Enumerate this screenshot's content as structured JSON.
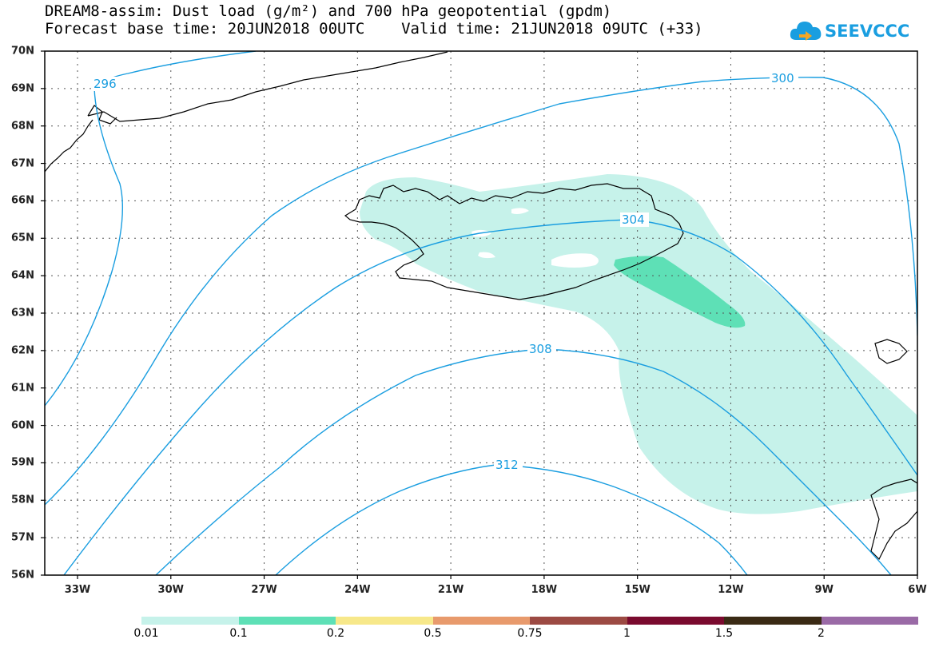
{
  "title": {
    "line1": "DREAM8-assim: Dust load (g/m²) and 700 hPa geopotential (gpdm)",
    "line2": "Forecast base time: 20JUN2018 00UTC    Valid time: 21JUN2018 09UTC (+33)"
  },
  "logo": {
    "text": "SEEVCCC",
    "icon": "cloud-icon",
    "color": "#1a9ee0"
  },
  "axes": {
    "lat_labels": [
      "70N",
      "69N",
      "68N",
      "67N",
      "66N",
      "65N",
      "64N",
      "63N",
      "62N",
      "61N",
      "60N",
      "59N",
      "58N",
      "57N",
      "56N"
    ],
    "lon_labels": [
      "33W",
      "30W",
      "27W",
      "24W",
      "21W",
      "18W",
      "15W",
      "12W",
      "9W",
      "6W"
    ]
  },
  "contours": {
    "color": "#1a9ee0",
    "labels": [
      "296",
      "300",
      "304",
      "308",
      "312"
    ]
  },
  "colorbar": {
    "colors": [
      "#c6f2ea",
      "#5ee0b6",
      "#f7e88a",
      "#e89a6c",
      "#9c4a43",
      "#7a0a2e",
      "#3a2a14",
      "#9a6aa6"
    ],
    "labels": [
      "0.01",
      "0.1",
      "0.2",
      "0.5",
      "0.75",
      "1",
      "1.5",
      "2"
    ]
  }
}
